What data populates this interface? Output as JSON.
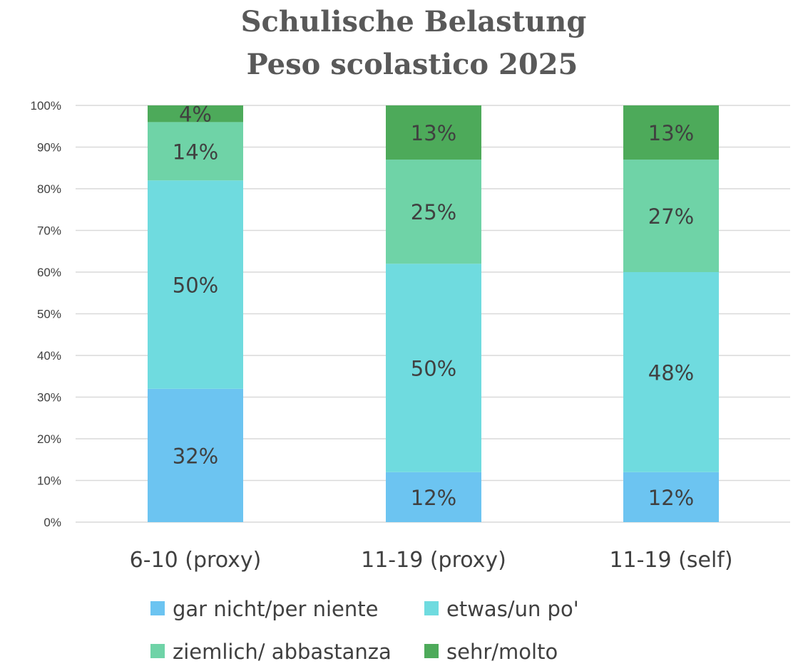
{
  "chart_data": {
    "type": "bar",
    "stacked": true,
    "percent_stacked": true,
    "title_lines": [
      "Schulische Belastung",
      "Peso scolastico 2025"
    ],
    "categories": [
      "6-10 (proxy)",
      "11-19 (proxy)",
      "11-19 (self)"
    ],
    "series": [
      {
        "name": "gar nicht/per niente",
        "values": [
          32,
          12,
          12
        ],
        "labels": [
          "32%",
          "12%",
          "12%"
        ],
        "color": "#6cc4f1"
      },
      {
        "name": "etwas/un po'",
        "values": [
          50,
          50,
          48
        ],
        "labels": [
          "50%",
          "50%",
          "48%"
        ],
        "color": "#6fdbdf"
      },
      {
        "name": "ziemlich/ abbastanza",
        "values": [
          14,
          25,
          27
        ],
        "labels": [
          "14%",
          "25%",
          "27%"
        ],
        "color": "#6fd3a7"
      },
      {
        "name": "sehr/molto",
        "values": [
          4,
          13,
          13
        ],
        "labels": [
          "4%",
          "13%",
          "13%"
        ],
        "color": "#4daa5a"
      }
    ],
    "y_ticks": [
      "0%",
      "10%",
      "20%",
      "30%",
      "40%",
      "50%",
      "60%",
      "70%",
      "80%",
      "90%",
      "100%"
    ],
    "ylim": [
      0,
      100
    ],
    "grid": true,
    "legend_position": "bottom"
  }
}
